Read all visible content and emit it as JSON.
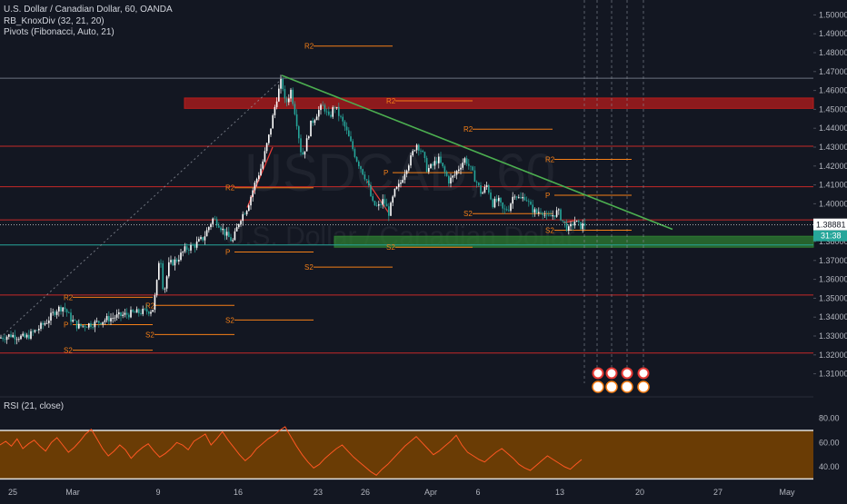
{
  "legend": {
    "title": "U.S. Dollar / Canadian Dollar, 60, OANDA",
    "indicator_1": "RB_KnoxDiv (32, 21, 20)",
    "indicator_2": "Pivots (Fibonacci, Auto, 21)",
    "rsi": "RSI (21, close)"
  },
  "watermark": {
    "symbol": "USDCAD, 60",
    "name": "U.S. Dollar / Canadian Dollar"
  },
  "colors": {
    "background": "#131722",
    "candle_up": "#ffffff",
    "candle_down": "#26a69a",
    "trendline": "#4caf50",
    "resistance_line": "#c62828",
    "support_line": "#26a69a",
    "pivot_line": "#f57f17",
    "rsi_band": "#7a4300",
    "rsi_line": "#ff5722",
    "last_price_tag": "#ffffff",
    "countdown_tag": "#26a69a"
  },
  "chart_data": {
    "type": "candlestick",
    "symbol": "U.S. Dollar / Canadian Dollar",
    "timeframe": "60",
    "source": "OANDA",
    "x_labels": [
      "25",
      "Mar",
      "9",
      "16",
      "23",
      "26",
      "Apr",
      "6",
      "13",
      "20",
      "27",
      "May"
    ],
    "y_ticks": [
      "1.50000",
      "1.49000",
      "1.48000",
      "1.47000",
      "1.46000",
      "1.45000",
      "1.44000",
      "1.43000",
      "1.42000",
      "1.41000",
      "1.40000",
      "1.39000",
      "1.38000",
      "1.37000",
      "1.36000",
      "1.35000",
      "1.34000",
      "1.33000",
      "1.32000",
      "1.31000"
    ],
    "ylim": [
      1.305,
      1.505
    ],
    "last_price": "1.38881",
    "countdown": "31:38",
    "price_path": [
      [
        0,
        1.329
      ],
      [
        12,
        1.3305
      ],
      [
        28,
        1.329
      ],
      [
        40,
        1.333
      ],
      [
        52,
        1.338
      ],
      [
        62,
        1.344
      ],
      [
        70,
        1.3455
      ],
      [
        78,
        1.339
      ],
      [
        86,
        1.335
      ],
      [
        96,
        1.336
      ],
      [
        106,
        1.337
      ],
      [
        118,
        1.339
      ],
      [
        130,
        1.3405
      ],
      [
        145,
        1.342
      ],
      [
        160,
        1.343
      ],
      [
        168,
        1.344
      ],
      [
        172,
        1.355
      ],
      [
        176,
        1.376
      ],
      [
        180,
        1.352
      ],
      [
        186,
        1.368
      ],
      [
        194,
        1.37
      ],
      [
        204,
        1.376
      ],
      [
        214,
        1.378
      ],
      [
        224,
        1.382
      ],
      [
        234,
        1.392
      ],
      [
        240,
        1.39
      ],
      [
        248,
        1.384
      ],
      [
        256,
        1.38
      ],
      [
        264,
        1.392
      ],
      [
        272,
        1.398
      ],
      [
        280,
        1.41
      ],
      [
        288,
        1.42
      ],
      [
        296,
        1.436
      ],
      [
        304,
        1.455
      ],
      [
        310,
        1.466
      ],
      [
        314,
        1.452
      ],
      [
        320,
        1.46
      ],
      [
        326,
        1.445
      ],
      [
        332,
        1.425
      ],
      [
        336,
        1.43
      ],
      [
        342,
        1.442
      ],
      [
        350,
        1.449
      ],
      [
        356,
        1.452
      ],
      [
        362,
        1.445
      ],
      [
        368,
        1.452
      ],
      [
        374,
        1.446
      ],
      [
        380,
        1.44
      ],
      [
        386,
        1.432
      ],
      [
        392,
        1.424
      ],
      [
        398,
        1.418
      ],
      [
        404,
        1.412
      ],
      [
        410,
        1.4
      ],
      [
        416,
        1.398
      ],
      [
        422,
        1.402
      ],
      [
        428,
        1.395
      ],
      [
        434,
        1.406
      ],
      [
        440,
        1.41
      ],
      [
        446,
        1.418
      ],
      [
        452,
        1.424
      ],
      [
        458,
        1.432
      ],
      [
        464,
        1.428
      ],
      [
        470,
        1.418
      ],
      [
        476,
        1.42
      ],
      [
        482,
        1.424
      ],
      [
        488,
        1.418
      ],
      [
        494,
        1.412
      ],
      [
        500,
        1.415
      ],
      [
        506,
        1.42
      ],
      [
        512,
        1.424
      ],
      [
        518,
        1.418
      ],
      [
        524,
        1.412
      ],
      [
        530,
        1.405
      ],
      [
        536,
        1.41
      ],
      [
        542,
        1.4
      ],
      [
        548,
        1.402
      ],
      [
        554,
        1.396
      ],
      [
        560,
        1.398
      ],
      [
        566,
        1.406
      ],
      [
        572,
        1.402
      ],
      [
        578,
        1.404
      ],
      [
        584,
        1.398
      ],
      [
        590,
        1.395
      ],
      [
        596,
        1.397
      ],
      [
        602,
        1.392
      ],
      [
        608,
        1.394
      ],
      [
        614,
        1.396
      ],
      [
        620,
        1.39
      ],
      [
        626,
        1.386
      ],
      [
        632,
        1.391
      ],
      [
        638,
        1.388
      ],
      [
        644,
        1.389
      ]
    ],
    "trendlines": [
      {
        "color": "#4caf50",
        "points": [
          [
            310,
            1.468
          ],
          [
            740,
            1.3865
          ]
        ]
      }
    ],
    "horizontal_lines": [
      {
        "y": 1.4665,
        "color": "#6b7280"
      },
      {
        "y": 1.4305,
        "color": "#c62828"
      },
      {
        "y": 1.409,
        "color": "#c62828"
      },
      {
        "y": 1.3915,
        "color": "#c62828"
      },
      {
        "y": 1.3782,
        "color": "#26a69a"
      },
      {
        "y": 1.3517,
        "color": "#c62828"
      },
      {
        "y": 1.321,
        "color": "#c62828"
      }
    ],
    "zones": [
      {
        "x1": 203,
        "x2": 932,
        "y_top": 1.456,
        "y_bottom": 1.4505,
        "color": "#b71c1c"
      },
      {
        "x1": 368,
        "x2": 932,
        "y_top": 1.3828,
        "y_bottom": 1.377,
        "color": "#2e7d32"
      }
    ],
    "pivot_lines": [
      {
        "label": "R2",
        "x1": 345,
        "x2": 432,
        "y": 1.4835
      },
      {
        "label": "R2",
        "x1": 435,
        "x2": 520,
        "y": 1.4545
      },
      {
        "label": "R2",
        "x1": 520,
        "x2": 608,
        "y": 1.4395
      },
      {
        "label": "R2",
        "x1": 610,
        "x2": 695,
        "y": 1.4235
      },
      {
        "label": "P",
        "x1": 610,
        "x2": 695,
        "y": 1.4045
      },
      {
        "label": "S2",
        "x1": 610,
        "x2": 695,
        "y": 1.386
      },
      {
        "label": "P",
        "x1": 432,
        "x2": 520,
        "y": 1.4165
      },
      {
        "label": "S2",
        "x1": 520,
        "x2": 608,
        "y": 1.3948
      },
      {
        "label": "S2",
        "x1": 435,
        "x2": 520,
        "y": 1.377
      },
      {
        "label": "S2",
        "x1": 345,
        "x2": 432,
        "y": 1.3665
      },
      {
        "label": "R2",
        "x1": 258,
        "x2": 345,
        "y": 1.4085
      },
      {
        "label": "P",
        "x1": 258,
        "x2": 345,
        "y": 1.3745
      },
      {
        "label": "R2",
        "x1": 170,
        "x2": 258,
        "y": 1.3462
      },
      {
        "label": "S2",
        "x1": 258,
        "x2": 345,
        "y": 1.3385
      },
      {
        "label": "S2",
        "x1": 170,
        "x2": 258,
        "y": 1.3308
      },
      {
        "label": "R2",
        "x1": 80,
        "x2": 168,
        "y": 1.3505
      },
      {
        "label": "P",
        "x1": 80,
        "x2": 168,
        "y": 1.336
      },
      {
        "label": "S2",
        "x1": 80,
        "x2": 168,
        "y": 1.3225
      }
    ],
    "event_icons": [
      {
        "type": "news",
        "x": 658
      },
      {
        "type": "news",
        "x": 673
      },
      {
        "type": "news",
        "x": 690
      },
      {
        "type": "news",
        "x": 708
      }
    ],
    "rsi": {
      "length": 21,
      "source": "close",
      "y_ticks": [
        "80.00",
        "60.00",
        "40.00"
      ],
      "ylim": [
        28,
        88
      ],
      "upper_band": 70,
      "lower_band": 30,
      "values": [
        58,
        61,
        57,
        63,
        55,
        59,
        62,
        57,
        53,
        60,
        64,
        58,
        52,
        56,
        61,
        67,
        71,
        63,
        55,
        49,
        53,
        58,
        54,
        47,
        52,
        56,
        59,
        53,
        48,
        51,
        55,
        60,
        58,
        54,
        61,
        64,
        67,
        58,
        63,
        69,
        62,
        56,
        50,
        45,
        49,
        55,
        59,
        63,
        66,
        70,
        73,
        65,
        57,
        50,
        44,
        39,
        42,
        47,
        51,
        55,
        58,
        53,
        48,
        44,
        40,
        36,
        33,
        38,
        42,
        47,
        52,
        57,
        61,
        65,
        60,
        55,
        50,
        53,
        57,
        61,
        66,
        58,
        52,
        49,
        46,
        44,
        48,
        52,
        55,
        51,
        47,
        42,
        39,
        37,
        41,
        45,
        49,
        46,
        43,
        40,
        38,
        42,
        46
      ]
    }
  }
}
